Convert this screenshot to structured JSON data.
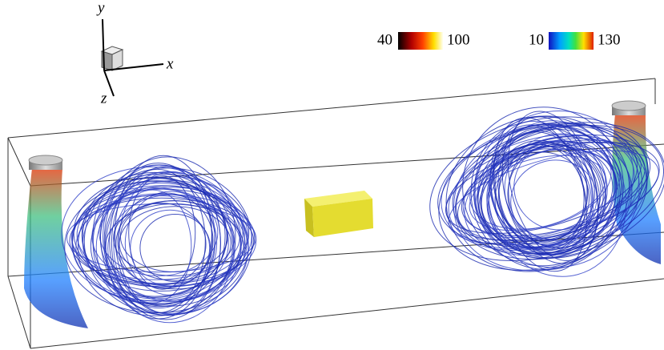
{
  "axes": {
    "y": "y",
    "x": "x",
    "z": "z"
  },
  "colorbars": [
    {
      "min": "40",
      "max": "100"
    },
    {
      "min": "10",
      "max": "130"
    }
  ]
}
